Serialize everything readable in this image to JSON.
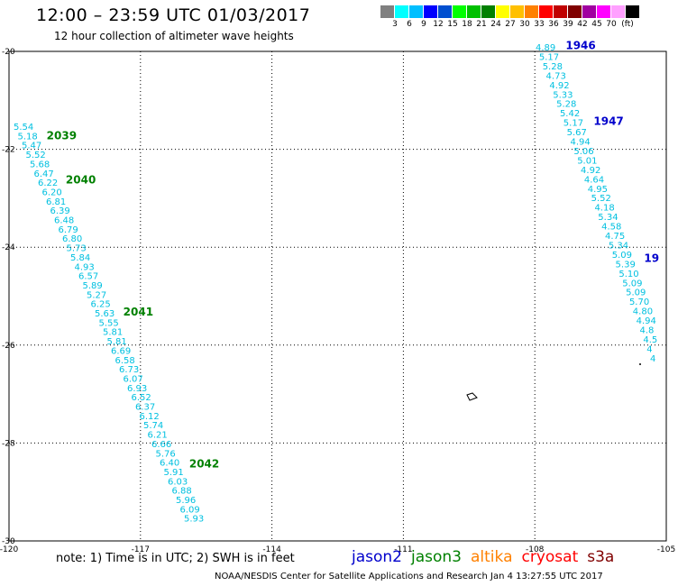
{
  "title": "12:00 – 23:59 UTC 01/03/2017",
  "subtitle": "12 hour collection of altimeter wave heights",
  "legend": {
    "unit": "(ft)",
    "colors": [
      "#808080",
      "#00ffff",
      "#00bfff",
      "#0000ff",
      "#004fd0",
      "#00ff00",
      "#00c000",
      "#008000",
      "#ffff00",
      "#ffc000",
      "#ff8000",
      "#ff0000",
      "#c00000",
      "#800000",
      "#a000a0",
      "#ff00ff",
      "#ffa0ff",
      "#000000"
    ],
    "labels": [
      "3",
      "6",
      "9",
      "12",
      "15",
      "18",
      "21",
      "24",
      "27",
      "30",
      "33",
      "36",
      "39",
      "42",
      "45",
      "70"
    ]
  },
  "axes": {
    "x_ticks": [
      "-120",
      "-117",
      "-114",
      "-111",
      "-108",
      "-105"
    ],
    "y_ticks": [
      "-20",
      "-22",
      "-24",
      "-26",
      "-28",
      "-30"
    ]
  },
  "tracks": [
    {
      "satellite": "jason3",
      "time_labels": [
        {
          "text": "2039",
          "lat": -21.8
        },
        {
          "text": "2040",
          "lat": -22.7
        },
        {
          "text": "2041",
          "lat": -25.4
        },
        {
          "text": "2042",
          "lat": -28.5
        }
      ],
      "values": [
        "5.54",
        "5.18",
        "5.47",
        "5.52",
        "5.68",
        "6.47",
        "6.22",
        "6.20",
        "6.81",
        "6.39",
        "6.48",
        "6.79",
        "6.80",
        "5.73",
        "5.84",
        "4.93",
        "6.57",
        "5.89",
        "5.27",
        "6.25",
        "5.63",
        "5.55",
        "5.81",
        "5.81",
        "6.69",
        "6.58",
        "6.73",
        "6.07",
        "6.93",
        "6.52",
        "6.37",
        "6.12",
        "5.74",
        "6.21",
        "6.66",
        "5.76",
        "6.40",
        "5.91",
        "6.03",
        "6.88",
        "5.96",
        "6.09",
        "5.93"
      ]
    },
    {
      "satellite": "jason2",
      "time_labels": [
        {
          "text": "1946",
          "lat": -19.95
        },
        {
          "text": "1947",
          "lat": -21.5
        },
        {
          "text": "19",
          "lat": -24.3
        }
      ],
      "values": [
        "4.89",
        "5.17",
        "5.28",
        "4.73",
        "4.92",
        "5.33",
        "5.28",
        "5.42",
        "5.17",
        "5.67",
        "4.94",
        "5.06",
        "5.01",
        "4.92",
        "4.64",
        "4.95",
        "5.52",
        "4.18",
        "5.34",
        "4.58",
        "4.75",
        "5.34",
        "5.09",
        "5.39",
        "5.10",
        "5.09",
        "5.09",
        "5.70",
        "4.80",
        "4.94",
        "4.8",
        "4.5",
        "4",
        "4"
      ]
    }
  ],
  "note": "note: 1) Time is in UTC; 2) SWH is in feet",
  "satellites": [
    {
      "name": "jason2",
      "color": "#0000cc"
    },
    {
      "name": "jason3",
      "color": "#008000"
    },
    {
      "name": "altika",
      "color": "#ff8000"
    },
    {
      "name": "cryosat",
      "color": "#ff0000"
    },
    {
      "name": "s3a",
      "color": "#800000"
    }
  ],
  "footer": "NOAA/NESDIS Center for Satellite Applications and Research    Jan  4 13:27:55 UTC 2017",
  "colors": {
    "swh": "#00c0e0",
    "jason3_time": "#008000",
    "jason2_time": "#0000cc"
  }
}
